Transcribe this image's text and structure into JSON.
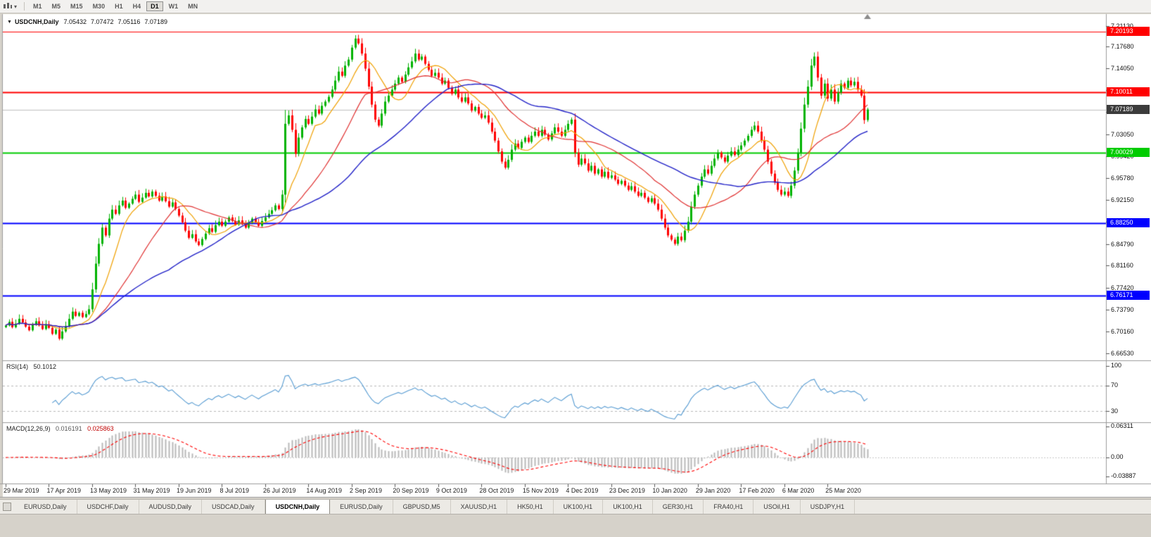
{
  "toolbar": {
    "periods": [
      {
        "label": "M1",
        "active": false
      },
      {
        "label": "M5",
        "active": false
      },
      {
        "label": "M15",
        "active": false
      },
      {
        "label": "M30",
        "active": false
      },
      {
        "label": "H1",
        "active": false
      },
      {
        "label": "H4",
        "active": false
      },
      {
        "label": "D1",
        "active": true
      },
      {
        "label": "W1",
        "active": false
      },
      {
        "label": "MN",
        "active": false
      }
    ]
  },
  "chart": {
    "title": {
      "symbol": "USDCNH,Daily",
      "open": "7.05432",
      "high": "7.07472",
      "low": "7.05116",
      "close": "7.07189"
    },
    "hlines": [
      {
        "value": 7.20193,
        "label": "7.20193",
        "color": "#ff0000",
        "width": 1
      },
      {
        "value": 7.10011,
        "label": "7.10011",
        "color": "#ff0000",
        "width": 2
      },
      {
        "value": 7.00029,
        "label": "7.00029",
        "color": "#00cc00",
        "width": 2
      },
      {
        "value": 6.8825,
        "label": "6.88250",
        "color": "#0000ff",
        "width": 2
      },
      {
        "value": 6.76171,
        "label": "6.76171",
        "color": "#0000ff",
        "width": 2
      }
    ],
    "current_price": {
      "value": 7.07189,
      "label": "7.07189",
      "badge_color": "#3c3c3c"
    },
    "price_axis_ticks": [
      "7.21130",
      "7.17680",
      "7.14050",
      "7.10420",
      "7.06810",
      "7.03050",
      "6.99420",
      "6.95780",
      "6.92150",
      "6.88520",
      "6.84790",
      "6.81160",
      "6.77420",
      "6.73790",
      "6.70160",
      "6.66530"
    ],
    "time_axis_labels": [
      "29 Mar 2019",
      "17 Apr 2019",
      "13 May 2019",
      "31 May 2019",
      "19 Jun 2019",
      "8 Jul 2019",
      "26 Jul 2019",
      "14 Aug 2019",
      "2 Sep 2019",
      "20 Sep 2019",
      "9 Oct 2019",
      "28 Oct 2019",
      "15 Nov 2019",
      "4 Dec 2019",
      "23 Dec 2019",
      "10 Jan 2020",
      "29 Jan 2020",
      "17 Feb 2020",
      "6 Mar 2020",
      "25 Mar 2020"
    ]
  },
  "indicators": {
    "rsi": {
      "label": "RSI(14)",
      "value": "50.1012",
      "levels": [
        "100",
        "70",
        "30"
      ]
    },
    "macd": {
      "label": "MACD(12,26,9)",
      "macd_value": "0.016191",
      "signal_value": "0.025863",
      "axis": [
        "0.06311",
        "0.00",
        "-0.03887"
      ]
    }
  },
  "chart_data": {
    "type": "candlestick",
    "symbol": "USDCNH",
    "timeframe": "Daily",
    "last_candle": {
      "open": 7.05432,
      "high": 7.07472,
      "low": 7.05116,
      "close": 7.07189
    },
    "moving_averages": [
      {
        "period": 10,
        "color": "#f0a000"
      },
      {
        "period": 25,
        "color": "#e03030"
      },
      {
        "period": 50,
        "color": "#2323c8"
      }
    ],
    "closes": [
      6.712,
      6.718,
      6.709,
      6.715,
      6.723,
      6.717,
      6.71,
      6.704,
      6.713,
      6.719,
      6.712,
      6.706,
      6.714,
      6.708,
      6.698,
      6.705,
      6.69,
      6.702,
      6.711,
      6.723,
      6.735,
      6.728,
      6.733,
      6.726,
      6.731,
      6.739,
      6.772,
      6.815,
      6.848,
      6.875,
      6.862,
      6.89,
      6.905,
      6.898,
      6.912,
      6.92,
      6.908,
      6.915,
      6.923,
      6.93,
      6.918,
      6.925,
      6.933,
      6.927,
      6.935,
      6.928,
      6.92,
      6.927,
      6.919,
      6.91,
      6.917,
      6.906,
      6.895,
      6.884,
      6.87,
      6.858,
      6.864,
      6.852,
      6.846,
      6.856,
      6.865,
      6.874,
      6.868,
      6.879,
      6.885,
      6.878,
      6.885,
      6.892,
      6.886,
      6.88,
      6.887,
      6.881,
      6.875,
      6.883,
      6.89,
      6.884,
      6.878,
      6.886,
      6.892,
      6.898,
      6.904,
      6.912,
      6.906,
      6.93,
      7.048,
      7.062,
      7.038,
      6.998,
      7.025,
      7.042,
      7.056,
      7.048,
      7.06,
      7.072,
      7.065,
      7.078,
      7.085,
      7.093,
      7.105,
      7.12,
      7.135,
      7.128,
      7.145,
      7.155,
      7.175,
      7.19,
      7.182,
      7.165,
      7.14,
      7.11,
      7.08,
      7.055,
      7.045,
      7.065,
      7.085,
      7.095,
      7.105,
      7.115,
      7.125,
      7.118,
      7.13,
      7.142,
      7.152,
      7.165,
      7.155,
      7.16,
      7.148,
      7.138,
      7.128,
      7.133,
      7.125,
      7.115,
      7.12,
      7.108,
      7.098,
      7.105,
      7.092,
      7.085,
      7.092,
      7.082,
      7.07,
      7.076,
      7.065,
      7.058,
      7.062,
      7.05,
      7.035,
      7.02,
      7.002,
      6.985,
      6.975,
      6.988,
      7.005,
      7.015,
      7.008,
      7.018,
      7.025,
      7.018,
      7.028,
      7.035,
      7.028,
      7.038,
      7.03,
      7.022,
      7.032,
      7.042,
      7.035,
      7.028,
      7.038,
      7.048,
      7.055,
      7.0,
      6.98,
      6.99,
      6.982,
      6.97,
      6.978,
      6.965,
      6.972,
      6.96,
      6.968,
      6.958,
      6.962,
      6.955,
      6.948,
      6.953,
      6.945,
      6.938,
      6.944,
      6.935,
      6.928,
      6.933,
      6.925,
      6.918,
      6.924,
      6.915,
      6.905,
      6.89,
      6.875,
      6.862,
      6.855,
      6.848,
      6.86,
      6.854,
      6.87,
      6.885,
      6.91,
      6.93,
      6.945,
      6.96,
      6.972,
      6.965,
      6.978,
      6.99,
      7.0,
      6.992,
      6.985,
      6.995,
      7.002,
      6.996,
      7.005,
      7.012,
      7.02,
      7.028,
      7.038,
      7.045,
      7.035,
      7.02,
      7.005,
      6.985,
      6.965,
      6.95,
      6.938,
      6.93,
      6.935,
      6.928,
      6.945,
      6.97,
      7.0,
      7.04,
      7.08,
      7.11,
      7.145,
      7.16,
      7.125,
      7.095,
      7.115,
      7.09,
      7.105,
      7.085,
      7.1,
      7.115,
      7.108,
      7.12,
      7.112,
      7.118,
      7.105,
      7.095,
      7.05432,
      7.07189
    ]
  },
  "tabs": [
    {
      "label": "EURUSD,Daily",
      "active": false
    },
    {
      "label": "USDCHF,Daily",
      "active": false
    },
    {
      "label": "AUDUSD,Daily",
      "active": false
    },
    {
      "label": "USDCAD,Daily",
      "active": false
    },
    {
      "label": "USDCNH,Daily",
      "active": true
    },
    {
      "label": "EURUSD,Daily",
      "active": false
    },
    {
      "label": "GBPUSD,M5",
      "active": false
    },
    {
      "label": "XAUUSD,H1",
      "active": false
    },
    {
      "label": "HK50,H1",
      "active": false
    },
    {
      "label": "UK100,H1",
      "active": false
    },
    {
      "label": "UK100,H1",
      "active": false
    },
    {
      "label": "GER30,H1",
      "active": false
    },
    {
      "label": "FRA40,H1",
      "active": false
    },
    {
      "label": "USOil,H1",
      "active": false
    },
    {
      "label": "USDJPY,H1",
      "active": false
    }
  ],
  "colors": {
    "candle_up": "#00b200",
    "candle_down": "#ff0000",
    "rsi_line": "#569bd2",
    "macd_hist": "#b8b8b8",
    "macd_signal": "#ff0000",
    "current_price_line": "#c0c0c0"
  }
}
